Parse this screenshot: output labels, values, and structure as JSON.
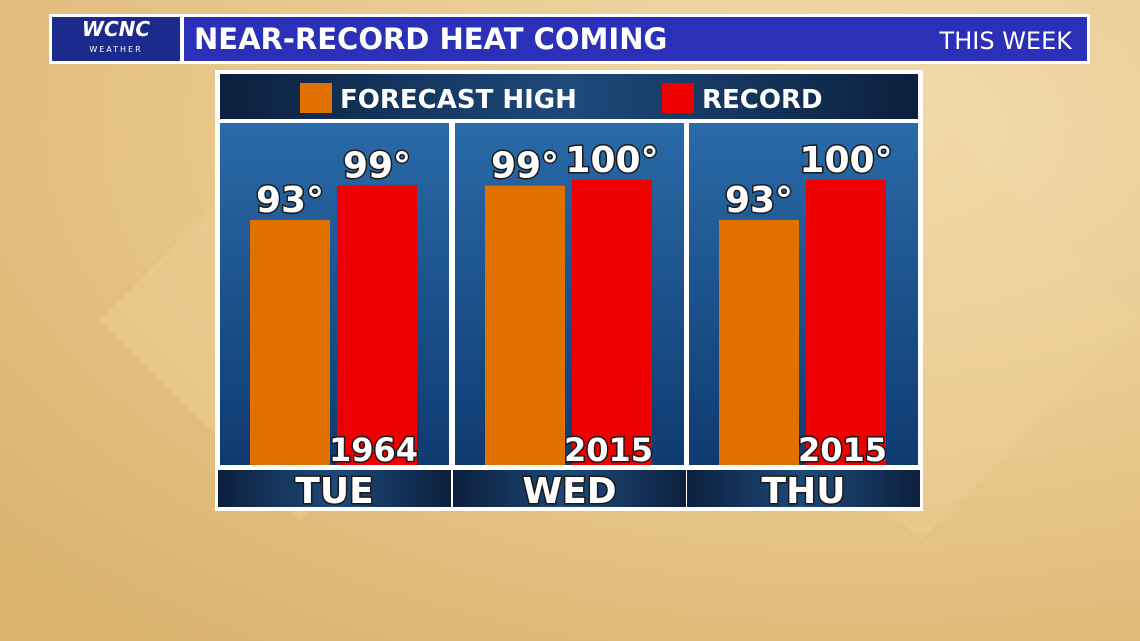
{
  "header": {
    "logo": "WCNC",
    "logo_sub": "WEATHER"
  },
  "chart_data": {
    "type": "bar",
    "title": "NEAR-RECORD HEAT COMING",
    "subtitle": "THIS WEEK",
    "categories": [
      "TUE",
      "WED",
      "THU"
    ],
    "series": [
      {
        "name": "FORECAST HIGH",
        "color": "#e07000",
        "values": [
          93,
          99,
          93
        ],
        "value_labels": [
          "93°",
          "99°",
          "93°"
        ]
      },
      {
        "name": "RECORD",
        "color": "#ee0000",
        "values": [
          99,
          100,
          100
        ],
        "value_labels": [
          "99°",
          "100°",
          "100°"
        ]
      }
    ],
    "record_years": [
      "1964",
      "2015",
      "2015"
    ],
    "ylim": [
      50,
      110
    ]
  }
}
